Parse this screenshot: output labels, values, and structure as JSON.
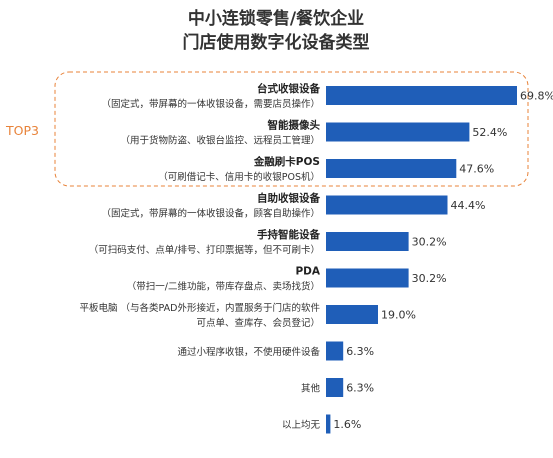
{
  "chart_data": {
    "type": "bar",
    "orientation": "horizontal",
    "title_lines": [
      "中小连锁零售/餐饮企业",
      "门店使用数字化设备类型"
    ],
    "highlight_label": "TOP3",
    "highlight_count": 3,
    "bar_color": "#1F5EB8",
    "highlight_color": "#E8833A",
    "categories": [
      {
        "label_lines": [
          {
            "text": "台式收银设备",
            "bold": true
          },
          {
            "text": "（固定式，带屏幕的一体收银设备，需要店员操作）",
            "bold": false
          }
        ],
        "value": 69.8,
        "value_label": "69.8%"
      },
      {
        "label_lines": [
          {
            "text": "智能摄像头",
            "bold": true
          },
          {
            "text": "（用于货物防盗、收银台监控、远程员工管理）",
            "bold": false
          }
        ],
        "value": 52.4,
        "value_label": "52.4%"
      },
      {
        "label_lines": [
          {
            "text": "金融刷卡POS",
            "bold": true
          },
          {
            "text": "（可刷借记卡、信用卡的收银POS机）",
            "bold": false
          }
        ],
        "value": 47.6,
        "value_label": "47.6%"
      },
      {
        "label_lines": [
          {
            "text": "自助收银设备",
            "bold": true
          },
          {
            "text": "（固定式，带屏幕的一体收银设备，顾客自助操作）",
            "bold": false
          }
        ],
        "value": 44.4,
        "value_label": "44.4%"
      },
      {
        "label_lines": [
          {
            "text": "手持智能设备",
            "bold": true
          },
          {
            "text": "（可扫码支付、点单/排号、打印票据等，但不可刷卡）",
            "bold": false
          }
        ],
        "value": 30.2,
        "value_label": "30.2%"
      },
      {
        "label_lines": [
          {
            "text": "PDA",
            "bold": true
          },
          {
            "text": "（带扫一/二维功能，带库存盘点、卖场找货）",
            "bold": false
          }
        ],
        "value": 30.2,
        "value_label": "30.2%"
      },
      {
        "label_lines": [
          {
            "text": "平板电脑 （与各类PAD外形接近，内置服务于门店的软件",
            "bold": false
          },
          {
            "text": "可点单、查库存、会员登记）",
            "bold": false
          }
        ],
        "value": 19.0,
        "value_label": "19.0%"
      },
      {
        "label_lines": [
          {
            "text": "通过小程序收银，不使用硬件设备",
            "bold": false
          }
        ],
        "value": 6.3,
        "value_label": "6.3%"
      },
      {
        "label_lines": [
          {
            "text": "其他",
            "bold": false
          }
        ],
        "value": 6.3,
        "value_label": "6.3%"
      },
      {
        "label_lines": [
          {
            "text": "以上均无",
            "bold": false
          }
        ],
        "value": 1.6,
        "value_label": "1.6%"
      }
    ],
    "xlim": [
      0,
      69.8
    ],
    "grid": false,
    "legend": "none"
  }
}
